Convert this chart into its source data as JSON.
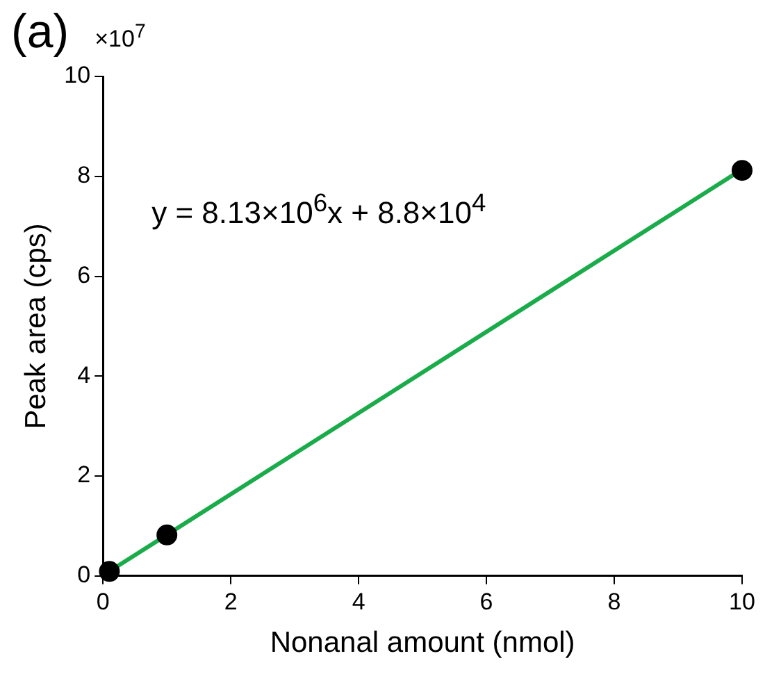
{
  "chart_data": {
    "type": "scatter",
    "title": "(a)",
    "xlabel": "Nonanal amount (nmol)",
    "ylabel": "Peak area (cps)",
    "x": [
      0.1,
      1,
      10
    ],
    "series": [
      {
        "type": "scatter",
        "color": "#000000",
        "values": [
          0.09,
          0.82,
          8.12
        ]
      },
      {
        "type": "line",
        "color": "#1aab4a",
        "x": [
          0,
          10
        ],
        "values": [
          0.01,
          8.14
        ],
        "marker": "none"
      }
    ],
    "xlim": [
      0,
      10
    ],
    "xticks": [
      0,
      2,
      4,
      6,
      8,
      10
    ],
    "ylim": [
      0,
      10
    ],
    "yticks": [
      0,
      2,
      4,
      6,
      8,
      10
    ],
    "marker": "circle",
    "grid": false,
    "legend": false,
    "annotations": [
      "×10$^{7}$",
      "y = 8.13×10$^{6}$x + 8.8×10$^{4}$"
    ]
  }
}
